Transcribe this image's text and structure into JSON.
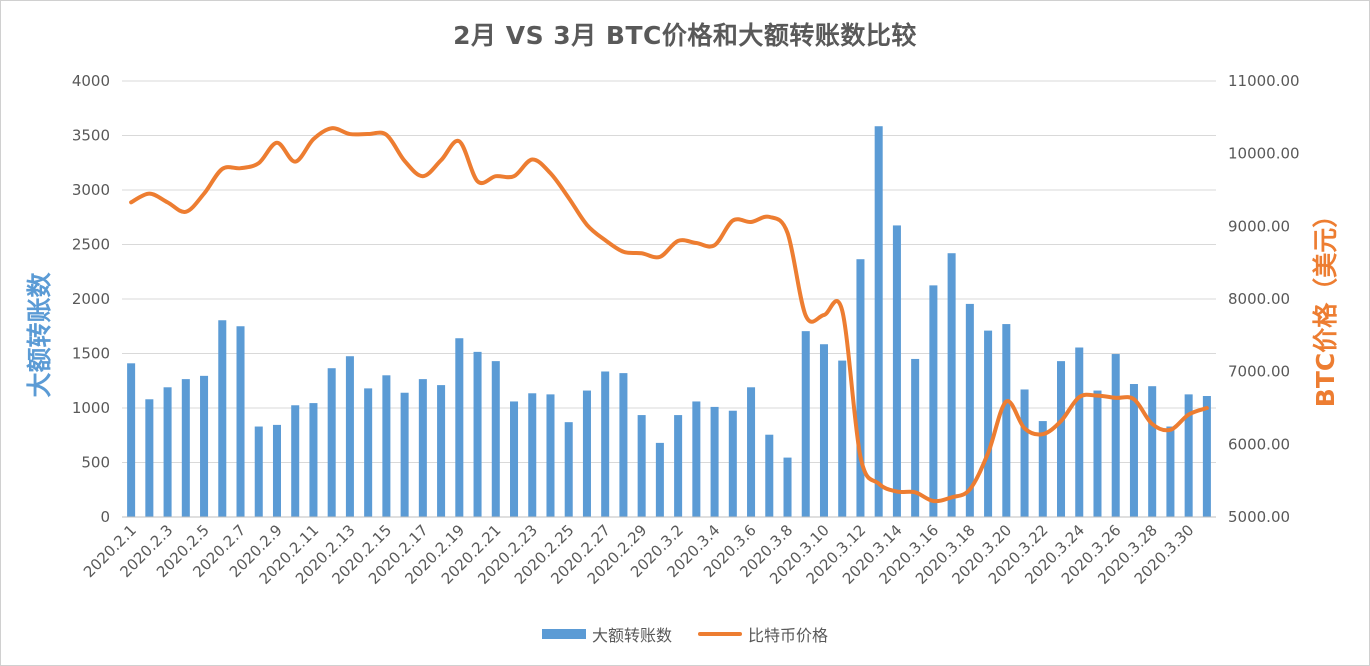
{
  "chart_data": {
    "type": "bar+line",
    "title": "2月 VS 3月 BTC价格和大额转账数比较",
    "y_left_label": "大额转账数",
    "y_right_label": "BTC价格（美元）",
    "y_left_lim": [
      0,
      4000
    ],
    "y_left_ticks": [
      "0",
      "500",
      "1000",
      "1500",
      "2000",
      "2500",
      "3000",
      "3500",
      "4000"
    ],
    "y_right_lim": [
      5000,
      11000
    ],
    "y_right_ticks": [
      "5000.00",
      "6000.00",
      "7000.00",
      "8000.00",
      "9000.00",
      "10000.00",
      "11000.00"
    ],
    "grid": true,
    "legend_position": "bottom",
    "categories": [
      "2020.2.1",
      "2020.2.2",
      "2020.2.3",
      "2020.2.4",
      "2020.2.5",
      "2020.2.6",
      "2020.2.7",
      "2020.2.8",
      "2020.2.9",
      "2020.2.10",
      "2020.2.11",
      "2020.2.12",
      "2020.2.13",
      "2020.2.14",
      "2020.2.15",
      "2020.2.16",
      "2020.2.17",
      "2020.2.18",
      "2020.2.19",
      "2020.2.20",
      "2020.2.21",
      "2020.2.22",
      "2020.2.23",
      "2020.2.24",
      "2020.2.25",
      "2020.2.26",
      "2020.2.27",
      "2020.2.28",
      "2020.2.29",
      "2020.3.1",
      "2020.3.2",
      "2020.3.3",
      "2020.3.4",
      "2020.3.5",
      "2020.3.6",
      "2020.3.7",
      "2020.3.8",
      "2020.3.9",
      "2020.3.10",
      "2020.3.11",
      "2020.3.12",
      "2020.3.13",
      "2020.3.14",
      "2020.3.15",
      "2020.3.16",
      "2020.3.17",
      "2020.3.18",
      "2020.3.19",
      "2020.3.20",
      "2020.3.21",
      "2020.3.22",
      "2020.3.23",
      "2020.3.24",
      "2020.3.25",
      "2020.3.26",
      "2020.3.27",
      "2020.3.28",
      "2020.3.29",
      "2020.3.30",
      "2020.3.31"
    ],
    "series": [
      {
        "name": "大额转账数",
        "kind": "bar",
        "axis": "left",
        "color": "#5b9bd5",
        "values": [
          1410,
          1080,
          1190,
          1265,
          1295,
          1805,
          1750,
          830,
          845,
          1025,
          1045,
          1365,
          1475,
          1180,
          1300,
          1140,
          1265,
          1210,
          1640,
          1515,
          1430,
          1060,
          1135,
          1125,
          870,
          1160,
          1335,
          1320,
          935,
          680,
          935,
          1060,
          1010,
          975,
          1190,
          755,
          545,
          1705,
          1585,
          1435,
          2365,
          3585,
          2675,
          1450,
          2125,
          2420,
          1955,
          1710,
          1770,
          1170,
          880,
          1430,
          1555,
          1160,
          1495,
          1220,
          1200,
          830,
          1125,
          1110
        ]
      },
      {
        "name": "比特币价格",
        "kind": "line",
        "axis": "right",
        "color": "#ed7d31",
        "values": [
          9330,
          9450,
          9330,
          9200,
          9450,
          9790,
          9800,
          9870,
          10150,
          9890,
          10200,
          10350,
          10270,
          10270,
          10260,
          9900,
          9690,
          9910,
          10170,
          9620,
          9690,
          9690,
          9920,
          9730,
          9390,
          9020,
          8810,
          8650,
          8630,
          8580,
          8800,
          8770,
          8740,
          9080,
          9060,
          9130,
          8910,
          7770,
          7780,
          7840,
          5830,
          5460,
          5350,
          5340,
          5220,
          5270,
          5380,
          5880,
          6590,
          6220,
          6140,
          6320,
          6650,
          6670,
          6640,
          6620,
          6280,
          6200,
          6410,
          6500
        ]
      }
    ]
  },
  "legend": {
    "bar_label": "大额转账数",
    "line_label": "比特币价格"
  },
  "colors": {
    "bar": "#5b9bd5",
    "line": "#ed7d31",
    "grid": "#d9d9d9",
    "text": "#595959"
  }
}
